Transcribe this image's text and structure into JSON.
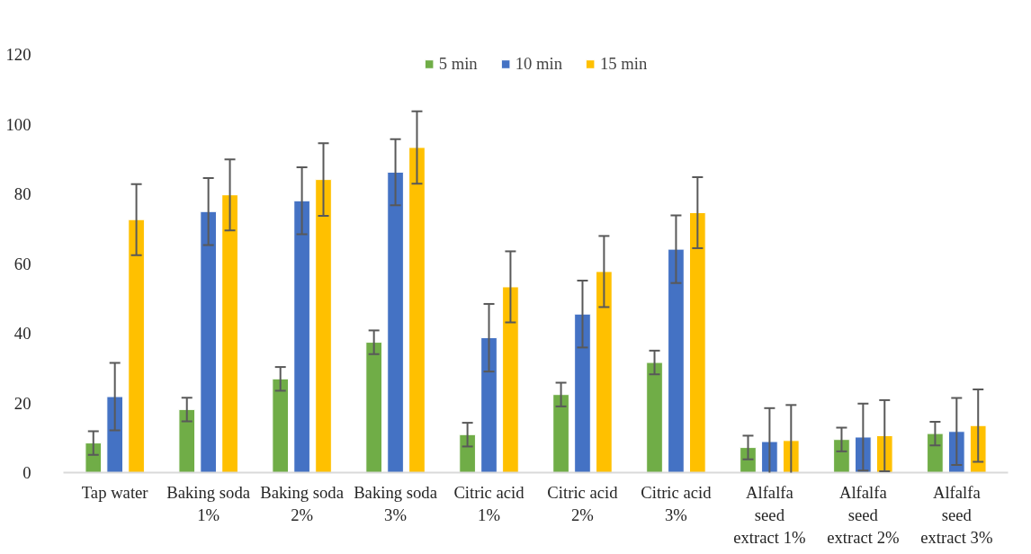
{
  "chart_data": {
    "type": "bar",
    "categories": [
      "Tap water",
      "Baking soda 1%",
      "Baking soda 2%",
      "Baking soda 3%",
      "Citric acid 1%",
      "Citric acid 2%",
      "Citric acid 3%",
      "Alfalfa seed extract 1%",
      "Alfalfa seed extract 2%",
      "Alfalfa seed extract 3%"
    ],
    "series": [
      {
        "name": "5 min",
        "color": "#70ad47",
        "values": [
          8.5,
          18.1,
          26.9,
          37.4,
          10.9,
          22.4,
          31.6,
          7.2,
          9.5,
          11.2
        ],
        "errors": [
          3.4,
          3.4,
          3.4,
          3.4,
          3.4,
          3.4,
          3.4,
          3.4,
          3.4,
          3.4
        ]
      },
      {
        "name": "10 min",
        "color": "#4472c4",
        "values": [
          21.8,
          74.9,
          78.0,
          86.2,
          38.7,
          45.5,
          64.1,
          8.9,
          10.2,
          11.8
        ],
        "errors": [
          9.7,
          9.6,
          9.6,
          9.5,
          9.7,
          9.6,
          9.7,
          9.6,
          9.6,
          9.6
        ]
      },
      {
        "name": "15 min",
        "color": "#ffc000",
        "values": [
          72.6,
          79.7,
          84.1,
          93.3,
          53.3,
          57.7,
          74.6,
          9.2,
          10.6,
          13.5
        ],
        "errors": [
          10.2,
          10.2,
          10.4,
          10.4,
          10.2,
          10.2,
          10.2,
          10.2,
          10.2,
          10.4
        ]
      }
    ],
    "ylim": [
      0,
      120
    ],
    "yticks": [
      0,
      20,
      40,
      60,
      80,
      100,
      120
    ],
    "grid": false,
    "legend": "top"
  }
}
